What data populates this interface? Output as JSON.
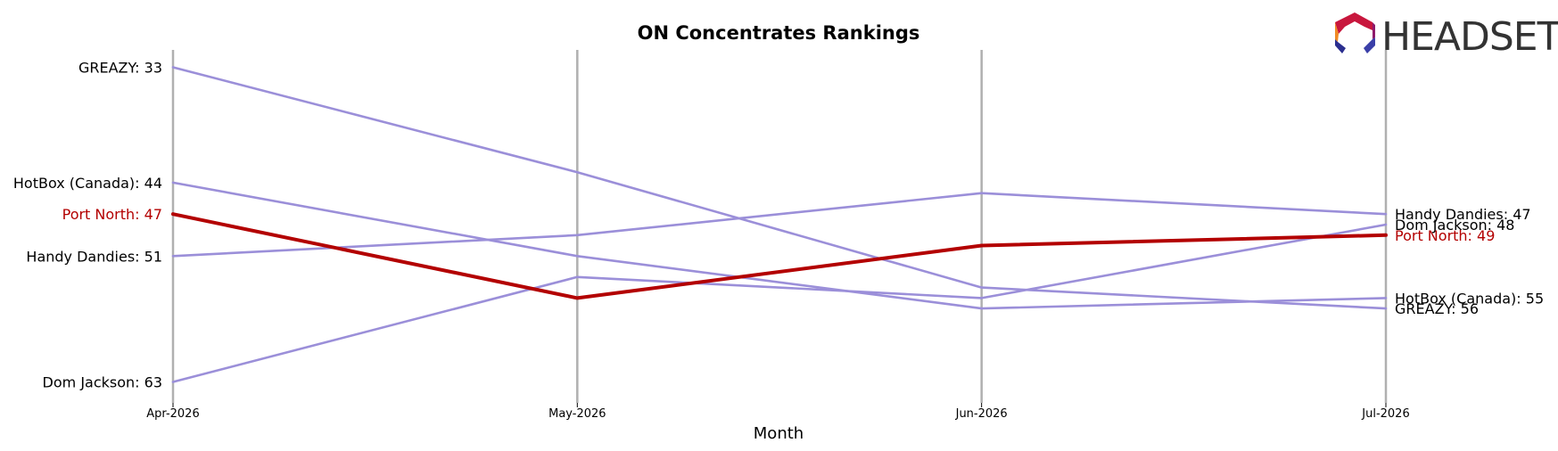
{
  "chart_data": {
    "type": "line",
    "chart_kind": "bump",
    "title": "ON Concentrates Rankings",
    "xlabel": "Month",
    "ylabel": "",
    "x": [
      "Apr-2026",
      "May-2026",
      "Jun-2026",
      "Jul-2026"
    ],
    "y_inverted": true,
    "ylim": [
      31,
      65
    ],
    "grid": "vertical",
    "series": [
      {
        "name": "GREAZY",
        "values": [
          33,
          43,
          54,
          56
        ],
        "color": "#9b8fd9",
        "highlight": false
      },
      {
        "name": "HotBox (Canada)",
        "values": [
          44,
          51,
          56,
          55
        ],
        "color": "#9b8fd9",
        "highlight": false
      },
      {
        "name": "Handy Dandies",
        "values": [
          51,
          49,
          45,
          47
        ],
        "color": "#9b8fd9",
        "highlight": false
      },
      {
        "name": "Dom Jackson",
        "values": [
          63,
          53,
          55,
          48
        ],
        "color": "#9b8fd9",
        "highlight": false
      },
      {
        "name": "Port North",
        "values": [
          47,
          55,
          50,
          49
        ],
        "color": "#b30000",
        "highlight": true
      }
    ],
    "start_labels": [
      {
        "series": "GREAZY",
        "text": "GREAZY: 33"
      },
      {
        "series": "HotBox (Canada)",
        "text": "HotBox (Canada): 44"
      },
      {
        "series": "Port North",
        "text": "Port North: 47"
      },
      {
        "series": "Handy Dandies",
        "text": "Handy Dandies: 51"
      },
      {
        "series": "Dom Jackson",
        "text": "Dom Jackson: 63"
      }
    ],
    "end_labels": [
      {
        "series": "Handy Dandies",
        "text": "Handy Dandies: 47"
      },
      {
        "series": "Dom Jackson",
        "text": "Dom Jackson: 48"
      },
      {
        "series": "Port North",
        "text": "Port North: 49"
      },
      {
        "series": "HotBox (Canada)",
        "text": "HotBox (Canada): 55"
      },
      {
        "series": "GREAZY",
        "text": "GREAZY: 56"
      }
    ]
  },
  "logo": {
    "text": "HEADSET",
    "icon": "headset-hexagon-logo-icon"
  },
  "colors": {
    "highlight": "#b30000",
    "muted_line": "#9b8fd9",
    "gridline": "#b0b0b0",
    "text": "#000000"
  }
}
